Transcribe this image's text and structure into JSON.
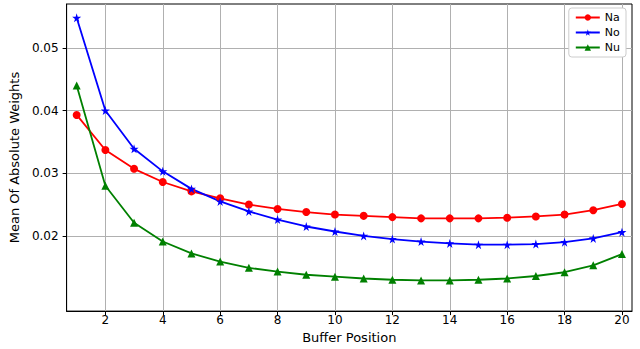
{
  "chart_data": {
    "type": "line",
    "x_label": "Buffer Position",
    "y_label": "Mean Of Absolute Weights",
    "x": [
      1,
      2,
      3,
      4,
      5,
      6,
      7,
      8,
      9,
      10,
      11,
      12,
      13,
      14,
      15,
      16,
      17,
      18,
      19,
      20
    ],
    "series": [
      {
        "name": "Na",
        "color": "#ff0000",
        "marker": "circle",
        "values": [
          0.0393,
          0.0337,
          0.0307,
          0.0286,
          0.0271,
          0.026,
          0.025,
          0.0243,
          0.0238,
          0.0234,
          0.0232,
          0.023,
          0.0228,
          0.0228,
          0.0228,
          0.0229,
          0.0231,
          0.0234,
          0.0241,
          0.0251
        ]
      },
      {
        "name": "No",
        "color": "#0000ff",
        "marker": "star",
        "values": [
          0.0548,
          0.04,
          0.0339,
          0.0303,
          0.0275,
          0.0255,
          0.0239,
          0.0226,
          0.0215,
          0.0207,
          0.02,
          0.0195,
          0.0191,
          0.0188,
          0.0186,
          0.0186,
          0.0187,
          0.019,
          0.0196,
          0.0206
        ]
      },
      {
        "name": "Nu",
        "color": "#008000",
        "marker": "triangle",
        "values": [
          0.044,
          0.028,
          0.0221,
          0.0191,
          0.0172,
          0.0159,
          0.0149,
          0.0143,
          0.0138,
          0.0135,
          0.0132,
          0.013,
          0.0129,
          0.0129,
          0.013,
          0.0132,
          0.0136,
          0.0142,
          0.0153,
          0.0171
        ]
      }
    ],
    "xlim": [
      0.65,
      20.35
    ],
    "xticks": [
      2,
      4,
      6,
      8,
      10,
      12,
      14,
      16,
      18,
      20
    ],
    "ylim": [
      0.008,
      0.057
    ],
    "yticks": [
      0.02,
      0.03,
      0.04,
      0.05
    ],
    "grid": true,
    "legend": "upper right"
  }
}
